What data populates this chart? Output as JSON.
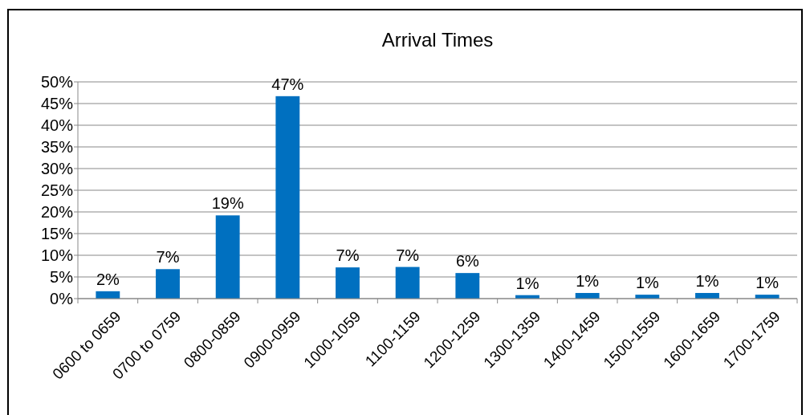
{
  "chart_data": {
    "type": "bar",
    "title": "Arrival Times",
    "categories": [
      "0600 to 0659",
      "0700 to 0759",
      "0800-0859",
      "0900-0959",
      "1000-1059",
      "1100-1159",
      "1200-1259",
      "1300-1359",
      "1400-1459",
      "1500-1559",
      "1600-1659",
      "1700-1759"
    ],
    "values": [
      1.7,
      6.8,
      19.2,
      46.7,
      7.2,
      7.3,
      5.9,
      0.8,
      1.3,
      0.9,
      1.3,
      0.9
    ],
    "value_labels": [
      "2%",
      "7%",
      "19%",
      "47%",
      "7%",
      "7%",
      "6%",
      "1%",
      "1%",
      "1%",
      "1%",
      "1%"
    ],
    "color": "#0070c0",
    "ylim": [
      0,
      50
    ],
    "yticks": [
      {
        "value": 0,
        "label": "0%"
      },
      {
        "value": 5,
        "label": "5%"
      },
      {
        "value": 10,
        "label": "10%"
      },
      {
        "value": 15,
        "label": "15%"
      },
      {
        "value": 20,
        "label": "20%"
      },
      {
        "value": 25,
        "label": "25%"
      },
      {
        "value": 30,
        "label": "30%"
      },
      {
        "value": 35,
        "label": "35%"
      },
      {
        "value": 40,
        "label": "40%"
      },
      {
        "value": 45,
        "label": "45%"
      },
      {
        "value": 50,
        "label": "50%"
      }
    ],
    "grid": "y"
  }
}
